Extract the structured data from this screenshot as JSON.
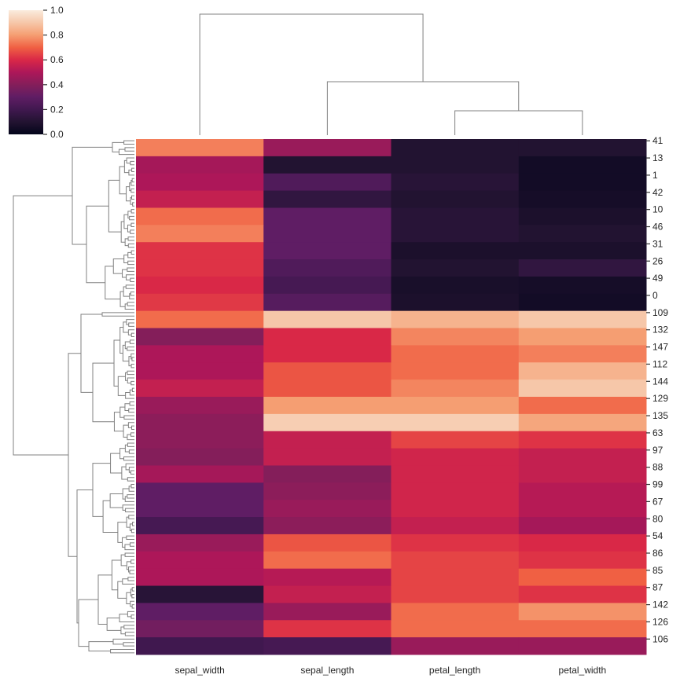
{
  "chart_data": {
    "type": "heatmap",
    "subtype": "clustermap",
    "title": "",
    "columns": [
      "sepal_width",
      "sepal_length",
      "petal_length",
      "petal_width"
    ],
    "row_labels": [
      "41",
      "13",
      "1",
      "42",
      "10",
      "46",
      "31",
      "26",
      "49",
      "0",
      "109",
      "132",
      "147",
      "112",
      "144",
      "129",
      "135",
      "63",
      "97",
      "88",
      "99",
      "67",
      "80",
      "54",
      "86",
      "85",
      "87",
      "142",
      "126",
      "106"
    ],
    "rows_per_label": 5,
    "values": [
      [
        0.75,
        0.45,
        0.1,
        0.1
      ],
      [
        0.48,
        0.1,
        0.1,
        0.05
      ],
      [
        0.5,
        0.25,
        0.12,
        0.05
      ],
      [
        0.55,
        0.15,
        0.1,
        0.06
      ],
      [
        0.72,
        0.3,
        0.12,
        0.08
      ],
      [
        0.75,
        0.3,
        0.12,
        0.1
      ],
      [
        0.62,
        0.3,
        0.08,
        0.08
      ],
      [
        0.62,
        0.25,
        0.1,
        0.15
      ],
      [
        0.6,
        0.22,
        0.07,
        0.06
      ],
      [
        0.63,
        0.27,
        0.08,
        0.05
      ],
      [
        0.72,
        0.9,
        0.85,
        0.9
      ],
      [
        0.4,
        0.6,
        0.76,
        0.8
      ],
      [
        0.5,
        0.6,
        0.72,
        0.75
      ],
      [
        0.5,
        0.68,
        0.72,
        0.85
      ],
      [
        0.55,
        0.68,
        0.76,
        0.9
      ],
      [
        0.45,
        0.8,
        0.8,
        0.72
      ],
      [
        0.42,
        0.92,
        0.92,
        0.82
      ],
      [
        0.42,
        0.55,
        0.65,
        0.62
      ],
      [
        0.4,
        0.55,
        0.58,
        0.55
      ],
      [
        0.48,
        0.4,
        0.58,
        0.55
      ],
      [
        0.3,
        0.42,
        0.58,
        0.52
      ],
      [
        0.3,
        0.45,
        0.58,
        0.52
      ],
      [
        0.22,
        0.42,
        0.55,
        0.48
      ],
      [
        0.45,
        0.68,
        0.62,
        0.6
      ],
      [
        0.5,
        0.72,
        0.65,
        0.62
      ],
      [
        0.5,
        0.52,
        0.65,
        0.7
      ],
      [
        0.12,
        0.55,
        0.65,
        0.62
      ],
      [
        0.3,
        0.45,
        0.72,
        0.78
      ],
      [
        0.35,
        0.62,
        0.72,
        0.72
      ],
      [
        0.2,
        0.22,
        0.45,
        0.45
      ]
    ],
    "colormap": "rocket",
    "colormap_stops": [
      "#03051a",
      "#221331",
      "#40184f",
      "#5f1d64",
      "#841e5a",
      "#ad1759",
      "#d92847",
      "#f06043",
      "#f59e72",
      "#f6c7a9",
      "#faebdd"
    ],
    "colorbar": {
      "range": [
        0,
        1
      ],
      "ticks": [
        "0.0",
        "0.2",
        "0.4",
        "0.6",
        "0.8",
        "1.0"
      ]
    },
    "dendrogram_color": "#808080",
    "column_dendrogram": "sepal_width | (sepal_length | (petal_length | petal_width))"
  }
}
